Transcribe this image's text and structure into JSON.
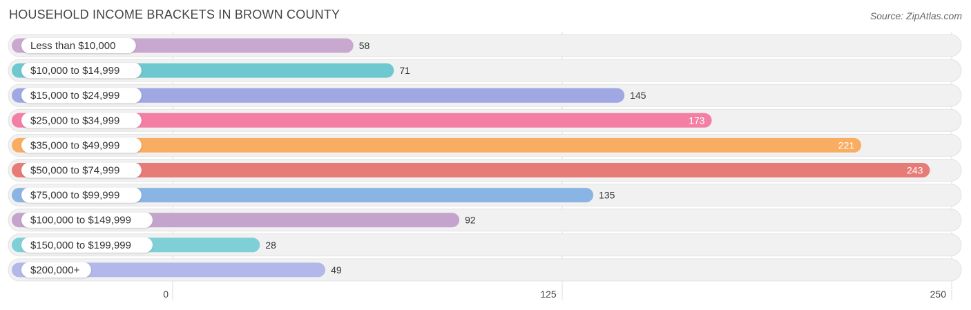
{
  "header": {
    "title": "HOUSEHOLD INCOME BRACKETS IN BROWN COUNTY",
    "source": "Source: ZipAtlas.com"
  },
  "chart_data": {
    "type": "bar",
    "orientation": "horizontal",
    "title": "HOUSEHOLD INCOME BRACKETS IN BROWN COUNTY",
    "categories": [
      "Less than $10,000",
      "$10,000 to $14,999",
      "$15,000 to $24,999",
      "$25,000 to $34,999",
      "$35,000 to $49,999",
      "$50,000 to $74,999",
      "$75,000 to $99,999",
      "$100,000 to $149,999",
      "$150,000 to $199,999",
      "$200,000+"
    ],
    "values": [
      58,
      71,
      145,
      173,
      221,
      243,
      135,
      92,
      28,
      49
    ],
    "colors": [
      "#c9a8cf",
      "#6ec8cf",
      "#a0a8e4",
      "#f47fa4",
      "#f9ad62",
      "#e77b77",
      "#8ab4e4",
      "#c4a4cc",
      "#7fd0d6",
      "#b2b8ea"
    ],
    "xlim": [
      0,
      250
    ],
    "xticks": [
      0,
      125,
      250
    ],
    "grid": true,
    "legend": "none"
  }
}
